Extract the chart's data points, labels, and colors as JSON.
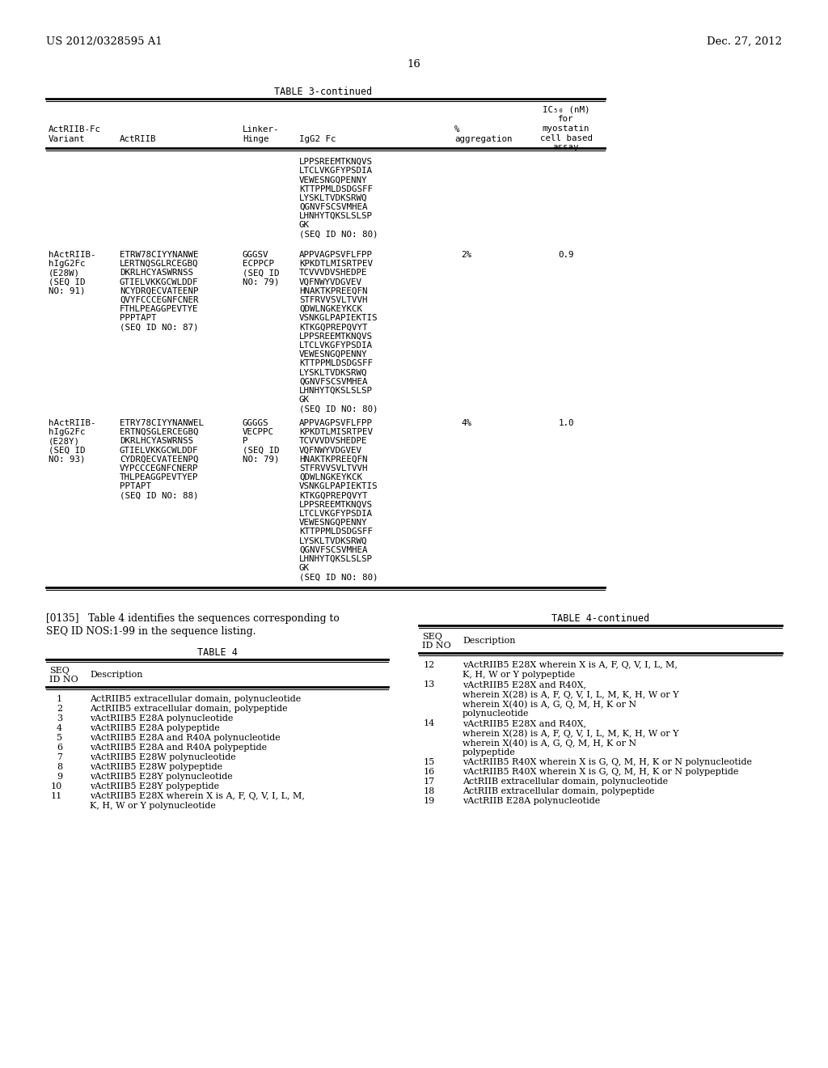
{
  "bg_color": "#ffffff",
  "header_left": "US 2012/0328595 A1",
  "header_right": "Dec. 27, 2012",
  "page_number": "16",
  "table3_title": "TABLE 3-continued",
  "row0_col4": [
    "LPPSREEMTKNQVS",
    "LTCLVKGFYPSDIA",
    "VEWESNGQPENNY",
    "KTTPPMLDSDGSFF",
    "LYSKLTVDKSRWQ",
    "QGNVFSCSVMHEA",
    "LHNHYTQKSLSLSP",
    "GK",
    "(SEQ ID NO: 80)"
  ],
  "row1_col1": [
    "hActRIIB-",
    "hIgG2Fc",
    "(E28W)",
    "(SEQ ID",
    "NO: 91)"
  ],
  "row1_col2": [
    "ETRW78CIYYNANWE",
    "LERTNQSGLRCEGBQ",
    "DKRLHCYASWRNSS",
    "GTIELVKKGCWLDDF",
    "NCYDRQECVATEENP",
    "QVYFCCCEGNFCNER",
    "FTHLPEAGGPEVTYE",
    "PPPTAPT",
    "(SEQ ID NO: 87)"
  ],
  "row1_col3": [
    "GGGSV",
    "ECPPCP",
    "(SEQ ID",
    "NO: 79)"
  ],
  "row1_col4": [
    "APPVAGPSVFLFPP",
    "KPKDTLMISRTPEV",
    "TCVVVDVSHEDPE",
    "VQFNWYVDGVEV",
    "HNAKTKPREEQFN",
    "STFRVVSVLTVVH",
    "QDWLNGKEYKCK",
    "VSNKGLPAPIEKTIS",
    "KTKGQPREPQVYT",
    "LPPSREEMTKNQVS",
    "LTCLVKGFYPSDIA",
    "VEWESNGQPENNY",
    "KTTPPMLDSDGSFF",
    "LYSKLTVDKSRWQ",
    "QGNVFSCSVMHEA",
    "LHNHYTQKSLSLSP",
    "GK",
    "(SEQ ID NO: 80)"
  ],
  "row1_col5": "2%",
  "row1_col6": "0.9",
  "row2_col1": [
    "hActRIIB-",
    "hIgG2Fc",
    "(E28Y)",
    "(SEQ ID",
    "NO: 93)"
  ],
  "row2_col2": [
    "ETRY78CIYYNANWEL",
    "ERTNQSGLERCEGBQ",
    "DKRLHCYASWRNSS",
    "GTIELVKKGCWLDDF",
    "CYDRQECVATEENPQ",
    "VYPCCCEGNFCNERP",
    "THLPEAGGPEVTYEP",
    "PPTAPT",
    "(SEQ ID NO: 88)"
  ],
  "row2_col3": [
    "GGGGS",
    "VECPPC",
    "P",
    "(SEQ ID",
    "NO: 79)"
  ],
  "row2_col4": [
    "APPVAGPSVFLFPP",
    "KPKDTLMISRTPEV",
    "TCVVVDVSHEDPE",
    "VQFNWYVDGVEV",
    "HNAKTKPREEQFN",
    "STFRVVSVLTVVH",
    "QDWLNGKEYKCK",
    "VSNKGLPAPIEKTIS",
    "KTKGQPREPQVYT",
    "LPPSREEMTKNQVS",
    "LTCLVKGFYPSDIA",
    "VEWESNGQPENNY",
    "KTTPPMLDSDGSFF",
    "LYSKLTVDKSRWQ",
    "QGNVFSCSVMHEA",
    "LHNHYTQKSLSLSP",
    "GK",
    "(SEQ ID NO: 80)"
  ],
  "row2_col5": "4%",
  "row2_col6": "1.0",
  "para_line1": "[0135]   Table 4 identifies the sequences corresponding to",
  "para_line2": "SEQ ID NOS:1-99 in the sequence listing.",
  "table4_title": "TABLE 4",
  "table4_rows": [
    [
      "1",
      "ActRIIB5 extracellular domain, polynucleotide"
    ],
    [
      "2",
      "ActRIIB5 extracellular domain, polypeptide"
    ],
    [
      "3",
      "vActRIIB5 E28A polynucleotide"
    ],
    [
      "4",
      "vActRIIB5 E28A polypeptide"
    ],
    [
      "5",
      "vActRIIB5 E28A and R40A polynucleotide"
    ],
    [
      "6",
      "vActRIIB5 E28A and R40A polypeptide"
    ],
    [
      "7",
      "vActRIIB5 E28W polynucleotide"
    ],
    [
      "8",
      "vActRIIB5 E28W polypeptide"
    ],
    [
      "9",
      "vActRIIB5 E28Y polynucleotide"
    ],
    [
      "10",
      "vActRIIB5 E28Y polypeptide"
    ],
    [
      "11",
      "vActRIIB5 E28X wherein X is A, F, Q, V, I, L, M,\nK, H, W or Y polynucleotide"
    ]
  ],
  "table4c_title": "TABLE 4-continued",
  "table4c_rows": [
    [
      "12",
      "vActRIIB5 E28X wherein X is A, F, Q, V, I, L, M,\nK, H, W or Y polypeptide"
    ],
    [
      "13",
      "vActRIIB5 E28X and R40X,\nwherein X(28) is A, F, Q, V, I, L, M, K, H, W or Y\nwherein X(40) is A, G, Q, M, H, K or N\npolynucleotide"
    ],
    [
      "14",
      "vActRIIB5 E28X and R40X,\nwherein X(28) is A, F, Q, V, I, L, M, K, H, W or Y\nwherein X(40) is A, G, Q, M, H, K or N\npolypeptide"
    ],
    [
      "15",
      "vActRIIB5 R40X wherein X is G, Q, M, H, K or N polynucleotide"
    ],
    [
      "16",
      "vActRIIB5 R40X wherein X is G, Q, M, H, K or N polypeptide"
    ],
    [
      "17",
      "ActRIIB extracellular domain, polynucleotide"
    ],
    [
      "18",
      "ActRIIB extracellular domain, polypeptide"
    ],
    [
      "19",
      "vActRIIB E28A polynucleotide"
    ]
  ]
}
